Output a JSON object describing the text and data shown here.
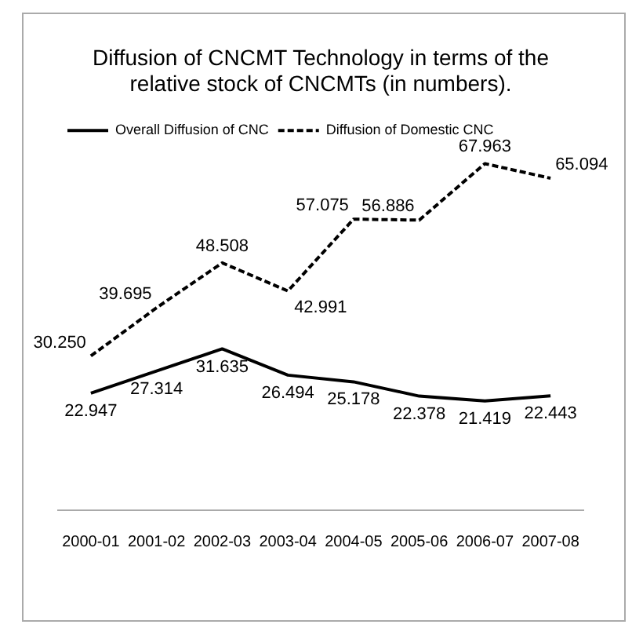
{
  "chart_data": {
    "type": "line",
    "title": "Diffusion of CNCMT Technology in terms of the relative stock of CNCMTs (in numbers).",
    "categories": [
      "2000-01",
      "2001-02",
      "2002-03",
      "2003-04",
      "2004-05",
      "2005-06",
      "2006-07",
      "2007-08"
    ],
    "series": [
      {
        "name": "Overall Diffusion of CNC",
        "color": "#000000",
        "line_style": "solid",
        "values": [
          22.947,
          27.314,
          31.635,
          26.494,
          25.178,
          22.378,
          21.419,
          22.443
        ],
        "value_labels": [
          "22.947",
          "27.314",
          "31.635",
          "26.494",
          "25.178",
          "22.378",
          "21.419",
          "22.443"
        ]
      },
      {
        "name": "Diffusion of Domestic CNC",
        "color": "#000000",
        "line_style": "dashed",
        "values": [
          30.25,
          39.695,
          48.508,
          42.991,
          57.075,
          56.886,
          67.963,
          65.094
        ],
        "value_labels": [
          "30.250",
          "39.695",
          "48.508",
          "42.991",
          "57.075",
          "56.886",
          "67.963",
          "65.094"
        ]
      }
    ],
    "tick_labels": "x",
    "grid": false,
    "legend": "top left",
    "marker": "none"
  }
}
